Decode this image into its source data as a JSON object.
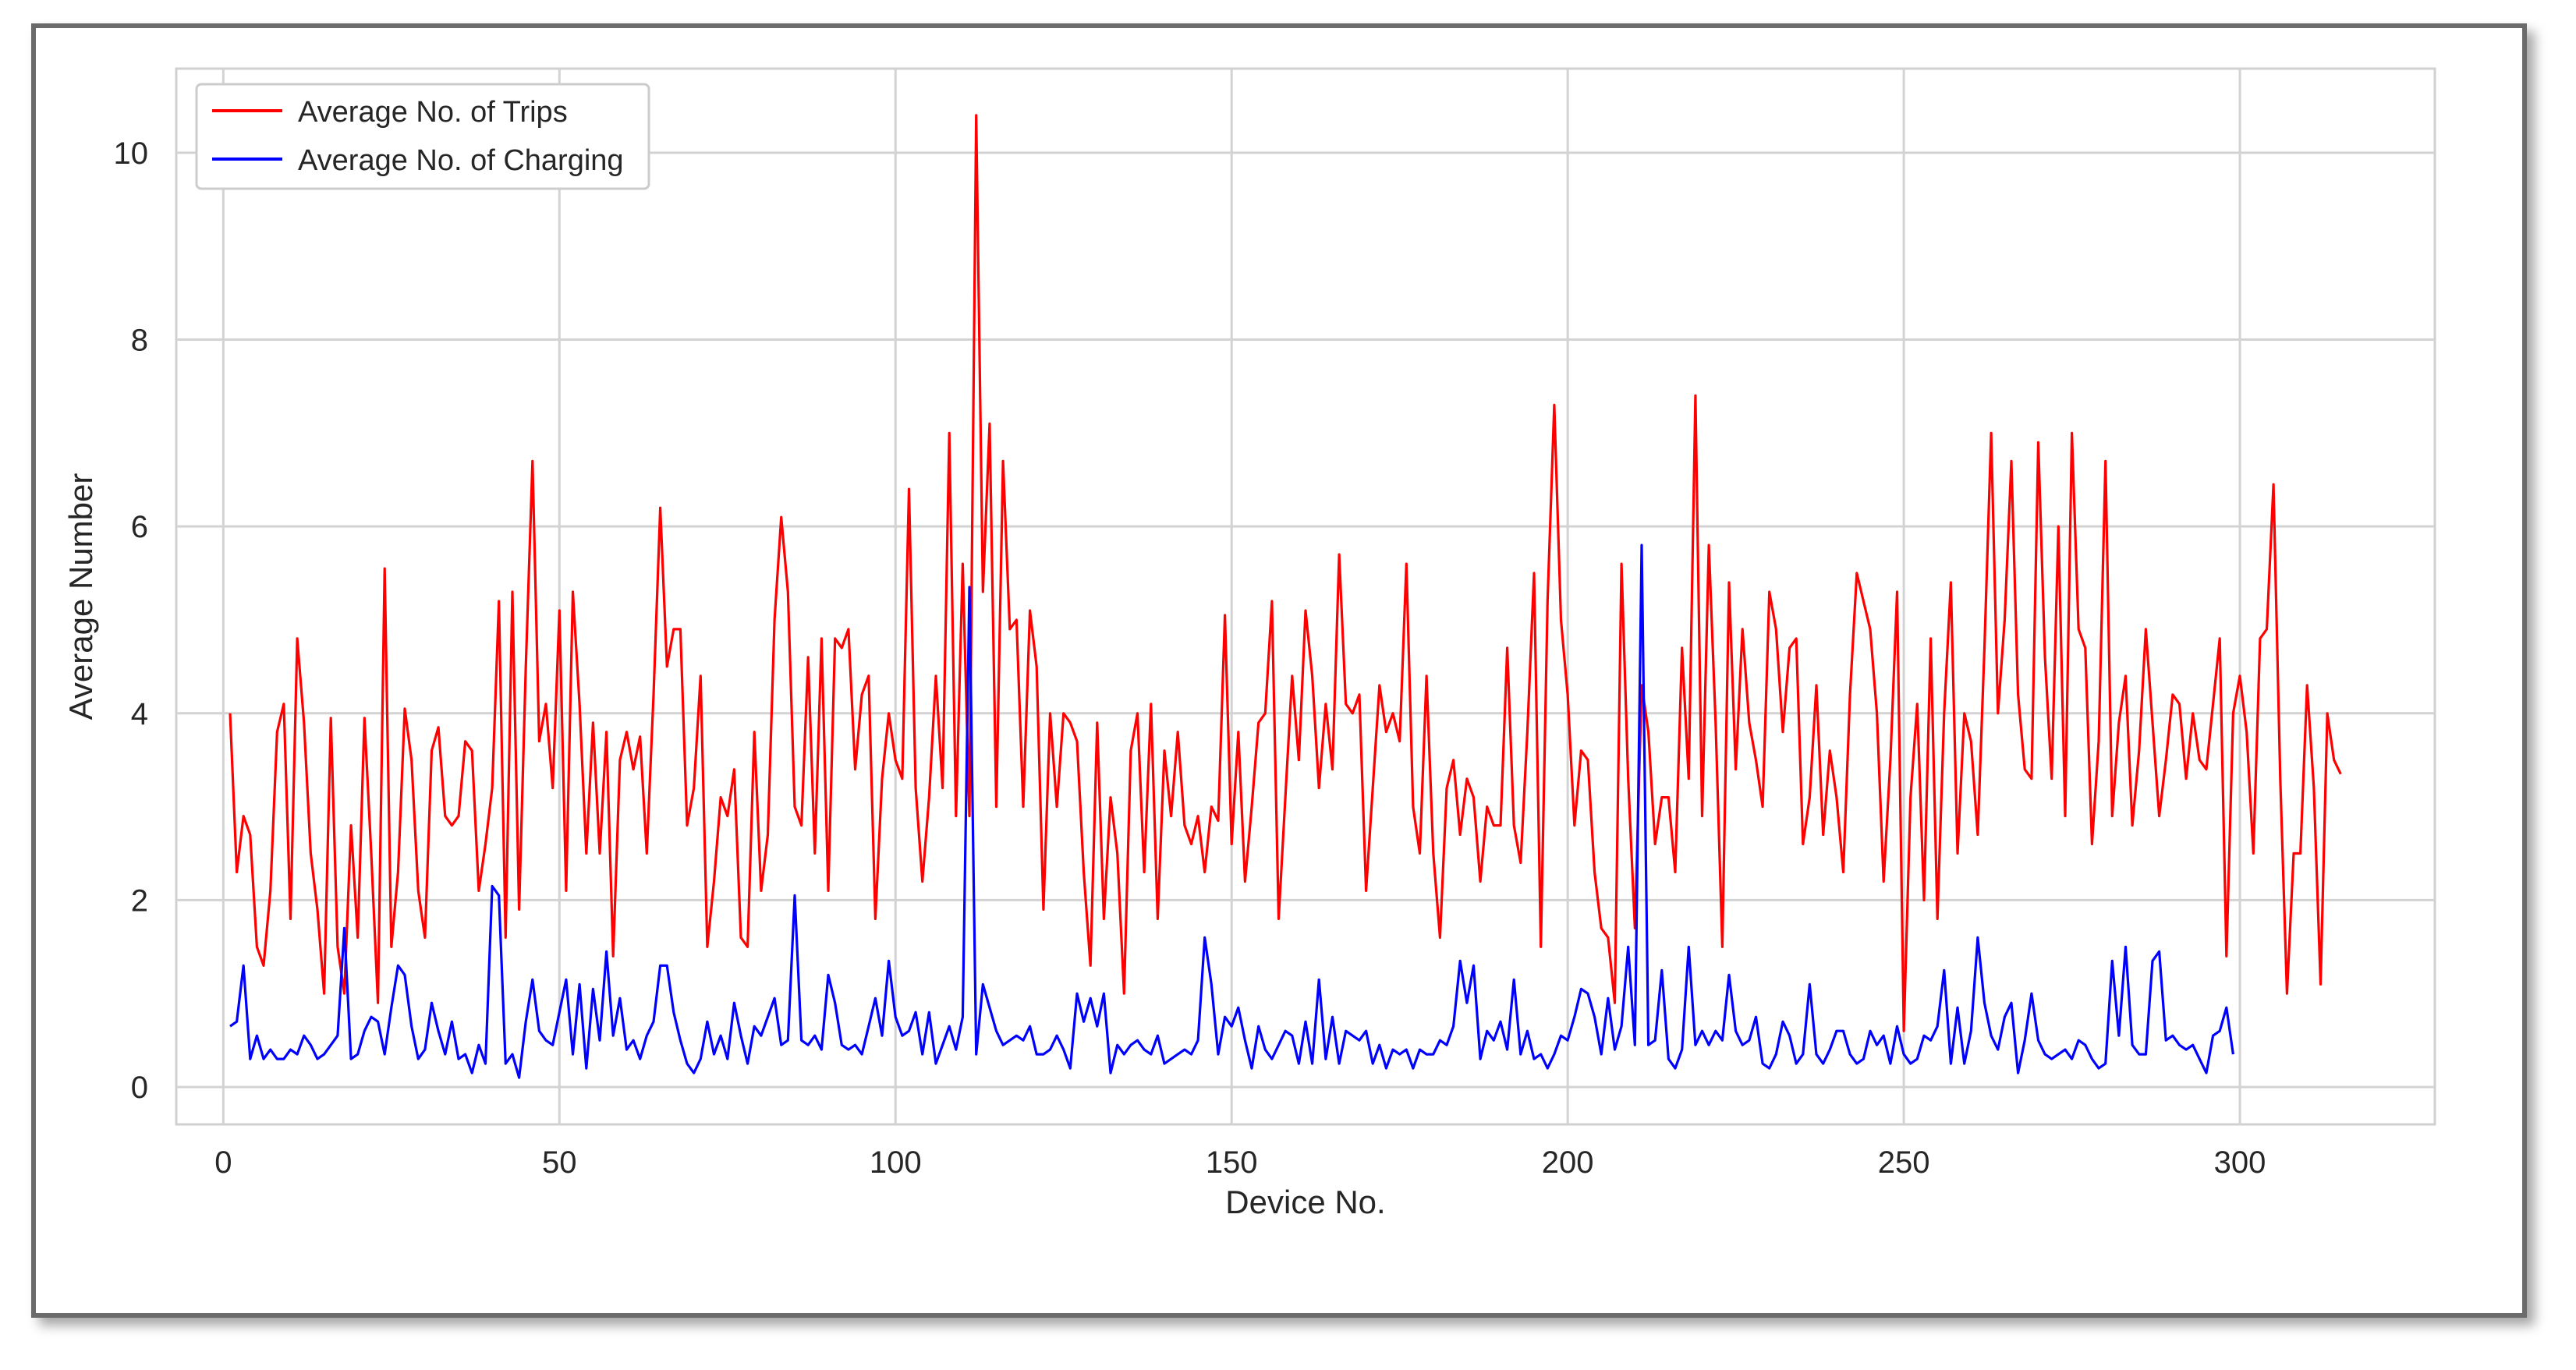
{
  "chart_data": {
    "type": "line",
    "title": "",
    "xlabel": "Device No.",
    "ylabel": "Average Number",
    "xlim": [
      -7,
      329
    ],
    "ylim": [
      -0.4,
      10.9
    ],
    "xticks": [
      "0",
      "50",
      "100",
      "150",
      "200",
      "250",
      "300"
    ],
    "xtick_values": [
      0,
      50,
      100,
      150,
      200,
      250,
      300
    ],
    "yticks": [
      "0",
      "2",
      "4",
      "6",
      "8",
      "10"
    ],
    "ytick_values": [
      0,
      2,
      4,
      6,
      8,
      10
    ],
    "grid": true,
    "legend_position": "upper-left",
    "series": [
      {
        "name": "Average No. of Trips",
        "color": "#ff0000",
        "x_start": 1,
        "values": [
          4.0,
          2.3,
          2.9,
          2.7,
          1.5,
          1.3,
          2.1,
          3.8,
          4.1,
          1.8,
          4.8,
          3.9,
          2.5,
          1.9,
          1.0,
          3.95,
          1.5,
          1.0,
          2.8,
          1.6,
          3.95,
          2.5,
          0.9,
          5.55,
          1.5,
          2.3,
          4.05,
          3.5,
          2.1,
          1.6,
          3.6,
          3.85,
          2.9,
          2.8,
          2.9,
          3.7,
          3.6,
          2.1,
          2.6,
          3.2,
          5.2,
          1.6,
          5.3,
          1.9,
          4.5,
          6.7,
          3.7,
          4.1,
          3.2,
          5.1,
          2.1,
          5.3,
          4.1,
          2.5,
          3.9,
          2.5,
          3.8,
          1.4,
          3.5,
          3.8,
          3.4,
          3.75,
          2.5,
          4.2,
          6.2,
          4.5,
          4.9,
          4.9,
          2.8,
          3.2,
          4.4,
          1.5,
          2.2,
          3.1,
          2.9,
          3.4,
          1.6,
          1.5,
          3.8,
          2.1,
          2.7,
          5.0,
          6.1,
          5.3,
          3.0,
          2.8,
          4.6,
          2.5,
          4.8,
          2.1,
          4.8,
          4.7,
          4.9,
          3.4,
          4.2,
          4.4,
          1.8,
          3.3,
          4.0,
          3.5,
          3.3,
          6.4,
          3.2,
          2.2,
          3.1,
          4.4,
          3.2,
          7.0,
          2.9,
          5.6,
          2.9,
          10.4,
          5.3,
          7.1,
          3.0,
          6.7,
          4.9,
          5.0,
          3.0,
          5.1,
          4.5,
          1.9,
          4.0,
          3.0,
          4.0,
          3.9,
          3.7,
          2.3,
          1.3,
          3.9,
          1.8,
          3.1,
          2.5,
          1.0,
          3.6,
          4.0,
          2.3,
          4.1,
          1.8,
          3.6,
          2.9,
          3.8,
          2.8,
          2.6,
          2.9,
          2.3,
          3.0,
          2.85,
          5.05,
          2.6,
          3.8,
          2.2,
          3.0,
          3.9,
          4.0,
          5.2,
          1.8,
          3.1,
          4.4,
          3.5,
          5.1,
          4.4,
          3.2,
          4.1,
          3.4,
          5.7,
          4.1,
          4.0,
          4.2,
          2.1,
          3.2,
          4.3,
          3.8,
          4.0,
          3.7,
          5.6,
          3.0,
          2.5,
          4.4,
          2.5,
          1.6,
          3.2,
          3.5,
          2.7,
          3.3,
          3.1,
          2.2,
          3.0,
          2.8,
          2.8,
          4.7,
          2.8,
          2.4,
          3.8,
          5.5,
          1.5,
          5.2,
          7.3,
          5.0,
          4.2,
          2.8,
          3.6,
          3.5,
          2.3,
          1.7,
          1.6,
          0.9,
          5.6,
          3.3,
          1.7,
          4.3,
          3.8,
          2.6,
          3.1,
          3.1,
          2.3,
          4.7,
          3.3,
          7.4,
          2.9,
          5.8,
          3.9,
          1.5,
          5.4,
          3.4,
          4.9,
          3.9,
          3.5,
          3.0,
          5.3,
          4.9,
          3.8,
          4.7,
          4.8,
          2.6,
          3.1,
          4.3,
          2.7,
          3.6,
          3.1,
          2.3,
          4.2,
          5.5,
          5.2,
          4.9,
          4.0,
          2.2,
          3.5,
          5.3,
          0.6,
          3.1,
          4.1,
          2.0,
          4.8,
          1.8,
          4.0,
          5.4,
          2.5,
          4.0,
          3.7,
          2.7,
          4.7,
          7.0,
          4.0,
          5.0,
          6.7,
          4.2,
          3.4,
          3.3,
          6.9,
          4.6,
          3.3,
          6.0,
          2.9,
          7.0,
          4.9,
          4.7,
          2.6,
          3.7,
          6.7,
          2.9,
          3.9,
          4.4,
          2.8,
          3.6,
          4.9,
          3.9,
          2.9,
          3.5,
          4.2,
          4.1,
          3.3,
          4.0,
          3.5,
          3.4,
          4.1,
          4.8,
          1.4,
          4.0,
          4.4,
          3.8,
          2.5,
          4.8,
          4.9,
          6.45,
          3.3,
          1.0,
          2.5,
          2.5,
          4.3,
          3.2,
          1.1,
          4.0,
          3.5,
          3.35
        ]
      },
      {
        "name": "Average No. of Charging",
        "color": "#0000ff",
        "x_start": 1,
        "values": [
          0.65,
          0.7,
          1.3,
          0.3,
          0.55,
          0.3,
          0.4,
          0.3,
          0.3,
          0.4,
          0.35,
          0.55,
          0.45,
          0.3,
          0.35,
          0.45,
          0.55,
          1.7,
          0.3,
          0.35,
          0.6,
          0.75,
          0.7,
          0.35,
          0.85,
          1.3,
          1.2,
          0.65,
          0.3,
          0.4,
          0.9,
          0.6,
          0.35,
          0.7,
          0.3,
          0.35,
          0.15,
          0.45,
          0.25,
          2.15,
          2.05,
          0.25,
          0.35,
          0.1,
          0.7,
          1.15,
          0.6,
          0.5,
          0.45,
          0.8,
          1.15,
          0.35,
          1.1,
          0.2,
          1.05,
          0.5,
          1.45,
          0.55,
          0.95,
          0.4,
          0.5,
          0.3,
          0.55,
          0.7,
          1.3,
          1.3,
          0.8,
          0.5,
          0.25,
          0.15,
          0.3,
          0.7,
          0.35,
          0.55,
          0.3,
          0.9,
          0.55,
          0.25,
          0.65,
          0.55,
          0.75,
          0.95,
          0.45,
          0.5,
          2.05,
          0.5,
          0.45,
          0.55,
          0.4,
          1.2,
          0.9,
          0.45,
          0.4,
          0.45,
          0.35,
          0.65,
          0.95,
          0.55,
          1.35,
          0.75,
          0.55,
          0.6,
          0.8,
          0.35,
          0.8,
          0.25,
          0.45,
          0.65,
          0.4,
          0.75,
          5.35,
          0.35,
          1.1,
          0.85,
          0.6,
          0.45,
          0.5,
          0.55,
          0.5,
          0.65,
          0.35,
          0.35,
          0.4,
          0.55,
          0.4,
          0.2,
          1.0,
          0.7,
          0.95,
          0.65,
          1.0,
          0.15,
          0.45,
          0.35,
          0.45,
          0.5,
          0.4,
          0.35,
          0.55,
          0.25,
          0.3,
          0.35,
          0.4,
          0.35,
          0.5,
          1.6,
          1.1,
          0.35,
          0.75,
          0.65,
          0.85,
          0.5,
          0.2,
          0.65,
          0.4,
          0.3,
          0.45,
          0.6,
          0.55,
          0.25,
          0.7,
          0.25,
          1.15,
          0.3,
          0.75,
          0.25,
          0.6,
          0.55,
          0.5,
          0.6,
          0.25,
          0.45,
          0.2,
          0.4,
          0.35,
          0.4,
          0.2,
          0.4,
          0.35,
          0.35,
          0.5,
          0.45,
          0.65,
          1.35,
          0.9,
          1.3,
          0.3,
          0.6,
          0.5,
          0.7,
          0.4,
          1.15,
          0.35,
          0.6,
          0.3,
          0.35,
          0.2,
          0.35,
          0.55,
          0.5,
          0.75,
          1.05,
          1.0,
          0.75,
          0.35,
          0.95,
          0.4,
          0.65,
          1.5,
          0.45,
          5.8,
          0.45,
          0.5,
          1.25,
          0.3,
          0.2,
          0.4,
          1.5,
          0.45,
          0.6,
          0.45,
          0.6,
          0.5,
          1.2,
          0.6,
          0.45,
          0.5,
          0.75,
          0.25,
          0.2,
          0.35,
          0.7,
          0.55,
          0.25,
          0.35,
          1.1,
          0.35,
          0.25,
          0.4,
          0.6,
          0.6,
          0.35,
          0.25,
          0.3,
          0.6,
          0.45,
          0.55,
          0.25,
          0.65,
          0.35,
          0.25,
          0.3,
          0.55,
          0.5,
          0.65,
          1.25,
          0.25,
          0.85,
          0.25,
          0.6,
          1.6,
          0.9,
          0.55,
          0.4,
          0.75,
          0.9,
          0.15,
          0.5,
          1.0,
          0.5,
          0.35,
          0.3,
          0.35,
          0.4,
          0.3,
          0.5,
          0.45,
          0.3,
          0.2,
          0.25,
          1.35,
          0.55,
          1.5,
          0.45,
          0.35,
          0.35,
          1.35,
          1.45,
          0.5,
          0.55,
          0.45,
          0.4,
          0.45,
          0.3,
          0.15,
          0.55,
          0.6,
          0.85,
          0.35
        ]
      }
    ]
  }
}
